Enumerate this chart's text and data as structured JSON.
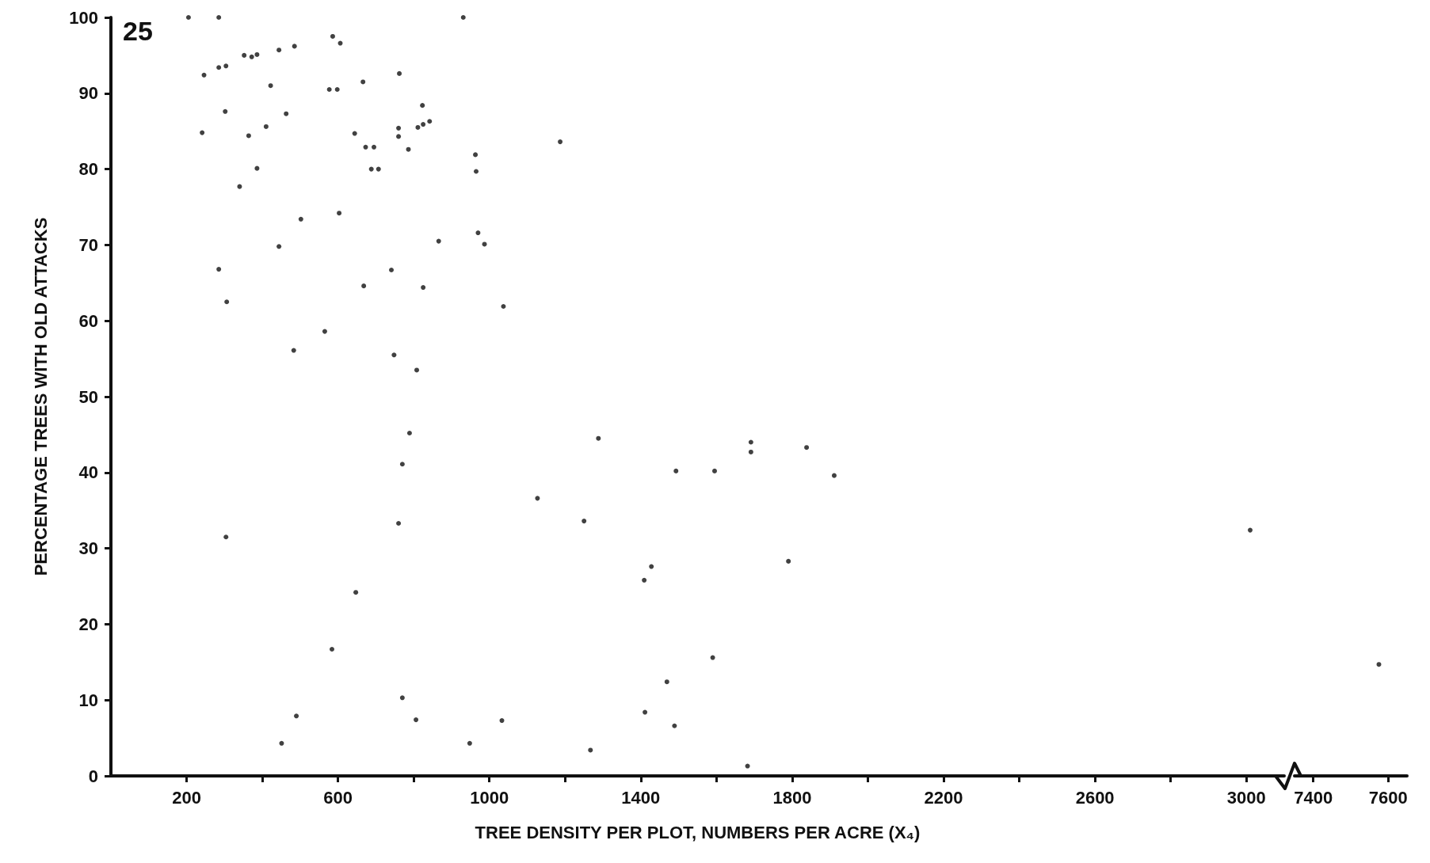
{
  "chart_data": [
    {
      "type": "scatter",
      "xlabel": "TREE DENSITY PER PLOT, NUMBERS PER ACRE (X₄)",
      "ylabel": "PERCENTAGE TREES WITH OLD ATTACKS",
      "annotations": [
        "25"
      ],
      "xlim": [
        0,
        3100
      ],
      "ylim": [
        0,
        100
      ],
      "xticks": [
        200,
        {
          "value": 400,
          "label": null
        },
        600,
        {
          "value": 800,
          "label": null
        },
        1000,
        {
          "value": 1200,
          "label": null
        },
        1400,
        {
          "value": 1600,
          "label": null
        },
        1800,
        {
          "value": 2000,
          "label": null
        },
        2200,
        {
          "value": 2400,
          "label": null
        },
        2600,
        {
          "value": 2800,
          "label": null
        },
        3000
      ],
      "yticks": [
        0,
        10,
        20,
        30,
        40,
        50,
        60,
        70,
        80,
        90,
        100
      ],
      "marker": "circle",
      "series": [
        {
          "color": "#111111",
          "x": [
            205,
            285,
            931,
            246,
            285,
            304,
            352,
            372,
            386,
            444,
            485,
            586,
            606,
            241,
            302,
            364,
            410,
            386,
            422,
            463,
            340,
            285,
            306,
            502,
            444,
            304,
            577,
            598,
            666,
            644,
            673,
            695,
            688,
            707,
            603,
            668,
            741,
            762,
            760,
            760,
            786,
            811,
            825,
            842,
            823,
            866,
            825,
            565,
            483,
            748,
            808,
            789,
            770,
            760,
            647,
            584,
            490,
            451,
            770,
            806,
            948,
            1033,
            963,
            965,
            970,
            987,
            1037,
            1187,
            1288,
            1127,
            1250,
            1409,
            1428,
            1493,
            1595,
            1691,
            1691,
            1838,
            1911,
            1790,
            1590,
            1469,
            1411,
            1489,
            1267,
            1682,
            3010
          ],
          "values": [
            100,
            100,
            100,
            92.4,
            93.4,
            93.6,
            95.0,
            94.8,
            95.1,
            95.7,
            96.2,
            97.5,
            96.6,
            84.8,
            87.6,
            84.4,
            85.6,
            80.1,
            91.0,
            87.3,
            77.7,
            66.8,
            62.5,
            73.4,
            69.8,
            31.5,
            90.5,
            90.5,
            91.5,
            84.7,
            82.9,
            82.9,
            80.0,
            80.0,
            74.2,
            64.6,
            66.7,
            92.6,
            85.4,
            84.3,
            82.6,
            85.5,
            85.9,
            86.3,
            88.4,
            70.5,
            64.4,
            58.6,
            56.1,
            55.5,
            53.5,
            45.2,
            41.1,
            33.3,
            24.2,
            16.7,
            7.9,
            4.3,
            10.3,
            7.4,
            4.3,
            7.3,
            81.9,
            79.7,
            71.6,
            70.1,
            61.9,
            83.6,
            44.5,
            36.6,
            33.6,
            25.8,
            27.6,
            40.2,
            40.2,
            44.0,
            42.7,
            43.3,
            39.6,
            28.3,
            15.6,
            12.4,
            8.4,
            6.6,
            3.4,
            1.3,
            32.4
          ]
        }
      ]
    },
    {
      "type": "scatter",
      "xlim": [
        7350,
        7650
      ],
      "ylim": [
        0,
        100
      ],
      "xticks": [
        7400,
        7600
      ],
      "tick_labels": "x",
      "marker": "circle",
      "series": [
        {
          "color": "#111111",
          "x": [
            7575
          ],
          "values": [
            14.7
          ]
        }
      ]
    }
  ]
}
